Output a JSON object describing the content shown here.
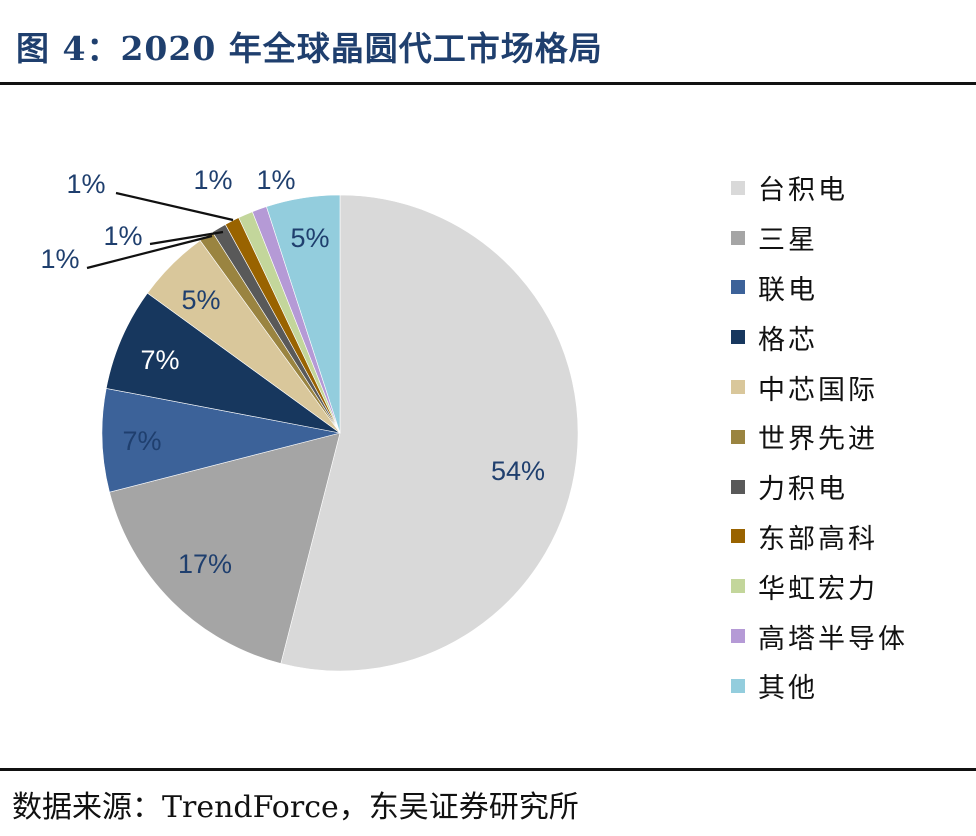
{
  "title": "图 4：2020 年全球晶圆代工市场格局",
  "source": "数据来源：TrendForce，东吴证券研究所",
  "chart_data": {
    "type": "pie",
    "title": "",
    "legend_position": "right",
    "start_angle": "12 o'clock",
    "direction": "clockwise",
    "slices": [
      {
        "name": "台积电",
        "value": 54,
        "label": "54%",
        "color": "#d9d9d9",
        "label_color": "#1f3f6e"
      },
      {
        "name": "三星",
        "value": 17,
        "label": "17%",
        "color": "#a5a5a5",
        "label_color": "#1f3f6e"
      },
      {
        "name": "联电",
        "value": 7,
        "label": "7%",
        "color": "#3c6299",
        "label_color": "#1f3f6e"
      },
      {
        "name": "格芯",
        "value": 7,
        "label": "7%",
        "color": "#17375e",
        "label_color": "#ffffff"
      },
      {
        "name": "中芯国际",
        "value": 5,
        "label": "5%",
        "color": "#d9c79b",
        "label_color": "#1f3f6e"
      },
      {
        "name": "世界先进",
        "value": 1,
        "label": "1%",
        "color": "#9a8440",
        "label_color": "#1f3f6e"
      },
      {
        "name": "力积电",
        "value": 1,
        "label": "1%",
        "color": "#595959",
        "label_color": "#1f3f6e"
      },
      {
        "name": "东部高科",
        "value": 1,
        "label": "1%",
        "color": "#996300",
        "label_color": "#1f3f6e"
      },
      {
        "name": "华虹宏力",
        "value": 1,
        "label": "1%",
        "color": "#c3d69b",
        "label_color": "#1f3f6e"
      },
      {
        "name": "高塔半导体",
        "value": 1,
        "label": "1%",
        "color": "#b59ad6",
        "label_color": "#1f3f6e"
      },
      {
        "name": "其他",
        "value": 5,
        "label": "5%",
        "color": "#93cddd",
        "label_color": "#1f3f6e"
      }
    ]
  }
}
